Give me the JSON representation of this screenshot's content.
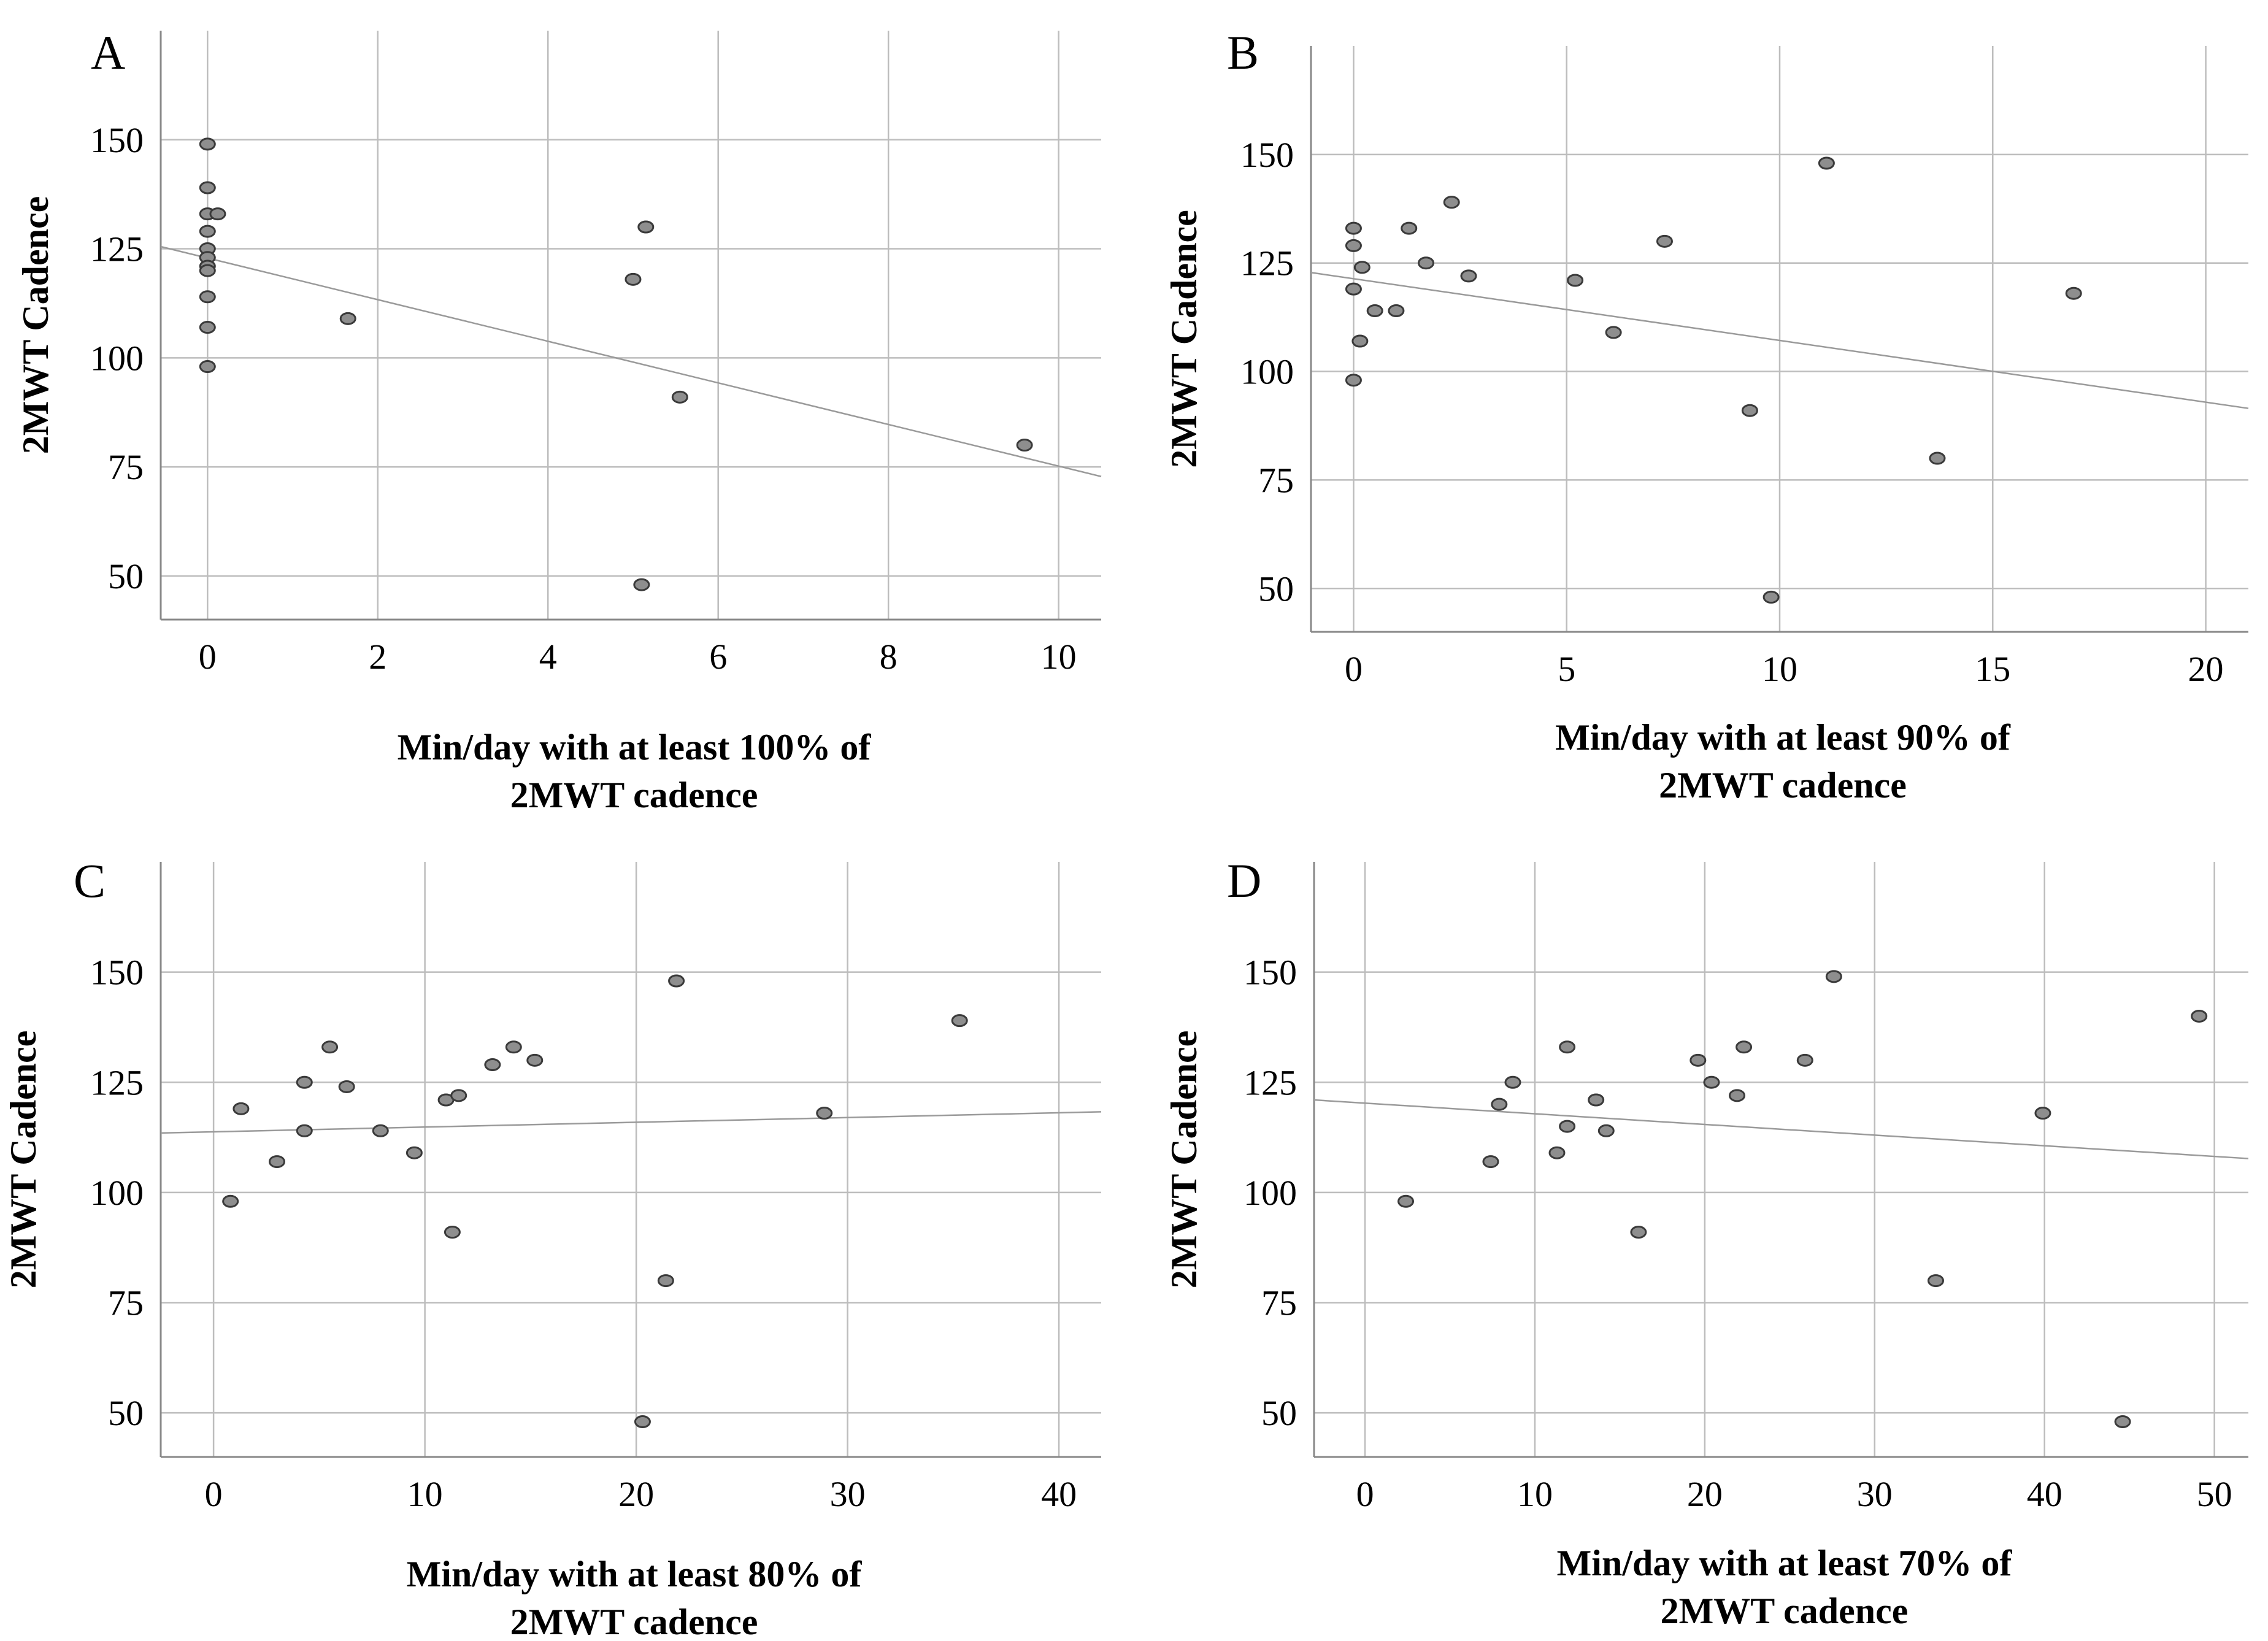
{
  "chart_data": [
    {
      "type": "scatter",
      "panel_label": "A",
      "ylabel": "2MWT Cadence",
      "xlabel_lines": [
        "Min/day with at least 100% of",
        "2MWT cadence"
      ],
      "xlim": [
        -0.55,
        10.5
      ],
      "ylim": [
        40,
        175
      ],
      "xticks": [
        0,
        2,
        4,
        6,
        8,
        10
      ],
      "yticks": [
        50,
        75,
        100,
        125,
        150
      ],
      "grid": true,
      "points": [
        [
          0,
          149
        ],
        [
          0,
          139
        ],
        [
          0,
          133
        ],
        [
          0.12,
          133
        ],
        [
          0,
          129
        ],
        [
          0,
          125
        ],
        [
          0,
          123
        ],
        [
          0,
          121
        ],
        [
          0,
          120
        ],
        [
          0,
          114
        ],
        [
          0,
          107
        ],
        [
          0,
          98
        ],
        [
          1.65,
          109
        ],
        [
          5.0,
          118
        ],
        [
          5.15,
          130
        ],
        [
          5.55,
          91
        ],
        [
          5.1,
          48
        ],
        [
          9.6,
          80
        ]
      ],
      "fit_line": [
        [
          -0.55,
          125.5
        ],
        [
          10.5,
          72.8
        ]
      ]
    },
    {
      "type": "scatter",
      "panel_label": "B",
      "ylabel": "2MWT Cadence",
      "xlabel_lines": [
        "Min/day with at least 90% of",
        "2MWT cadence"
      ],
      "xlim": [
        -1,
        21
      ],
      "ylim": [
        40,
        175
      ],
      "xticks": [
        0,
        5,
        10,
        15,
        20
      ],
      "yticks": [
        50,
        75,
        100,
        125,
        150
      ],
      "grid": true,
      "points": [
        [
          0,
          133
        ],
        [
          0,
          129
        ],
        [
          0.2,
          124
        ],
        [
          0,
          119
        ],
        [
          0.15,
          107
        ],
        [
          0,
          98
        ],
        [
          0.5,
          114
        ],
        [
          1.0,
          114
        ],
        [
          1.3,
          133
        ],
        [
          1.7,
          125
        ],
        [
          2.3,
          139
        ],
        [
          2.7,
          122
        ],
        [
          5.2,
          121
        ],
        [
          6.1,
          109
        ],
        [
          7.3,
          130
        ],
        [
          9.3,
          91
        ],
        [
          9.8,
          48
        ],
        [
          11.1,
          148
        ],
        [
          13.7,
          80
        ],
        [
          16.9,
          118
        ]
      ],
      "fit_line": [
        [
          -1,
          122.8
        ],
        [
          21,
          91.5
        ]
      ]
    },
    {
      "type": "scatter",
      "panel_label": "C",
      "ylabel": "2MWT Cadence",
      "xlabel_lines": [
        "Min/day with at least 80% of",
        "2MWT cadence"
      ],
      "xlim": [
        -2.5,
        42
      ],
      "ylim": [
        40,
        175
      ],
      "xticks": [
        0,
        10,
        20,
        30,
        40
      ],
      "yticks": [
        50,
        75,
        100,
        125,
        150
      ],
      "grid": true,
      "points": [
        [
          0.8,
          98
        ],
        [
          1.3,
          119
        ],
        [
          3.0,
          107
        ],
        [
          4.3,
          125
        ],
        [
          4.3,
          114
        ],
        [
          5.5,
          133
        ],
        [
          6.3,
          124
        ],
        [
          7.9,
          114
        ],
        [
          9.5,
          109
        ],
        [
          11.0,
          121
        ],
        [
          11.6,
          122
        ],
        [
          11.3,
          91
        ],
        [
          13.2,
          129
        ],
        [
          14.2,
          133
        ],
        [
          15.2,
          130
        ],
        [
          20.3,
          48
        ],
        [
          21.4,
          80
        ],
        [
          21.9,
          148
        ],
        [
          28.9,
          118
        ],
        [
          35.3,
          139
        ]
      ],
      "fit_line": [
        [
          -2.5,
          113.5
        ],
        [
          42,
          118.3
        ]
      ]
    },
    {
      "type": "scatter",
      "panel_label": "D",
      "ylabel": "2MWT Cadence",
      "xlabel_lines": [
        "Min/day with at least 70% of",
        "2MWT cadence"
      ],
      "xlim": [
        -3,
        52
      ],
      "ylim": [
        40,
        175
      ],
      "xticks": [
        0,
        10,
        20,
        30,
        40,
        50
      ],
      "yticks": [
        50,
        75,
        100,
        125,
        150
      ],
      "grid": true,
      "points": [
        [
          2.4,
          98
        ],
        [
          7.4,
          107
        ],
        [
          7.9,
          120
        ],
        [
          8.7,
          125
        ],
        [
          11.3,
          109
        ],
        [
          11.9,
          133
        ],
        [
          11.9,
          115
        ],
        [
          13.6,
          121
        ],
        [
          14.2,
          114
        ],
        [
          16.1,
          91
        ],
        [
          19.6,
          130
        ],
        [
          20.4,
          125
        ],
        [
          21.9,
          122
        ],
        [
          22.3,
          133
        ],
        [
          25.9,
          130
        ],
        [
          27.6,
          149
        ],
        [
          33.6,
          80
        ],
        [
          39.9,
          118
        ],
        [
          44.6,
          48
        ],
        [
          49.1,
          140
        ]
      ],
      "fit_line": [
        [
          -3,
          121.0
        ],
        [
          52,
          107.7
        ]
      ]
    }
  ]
}
